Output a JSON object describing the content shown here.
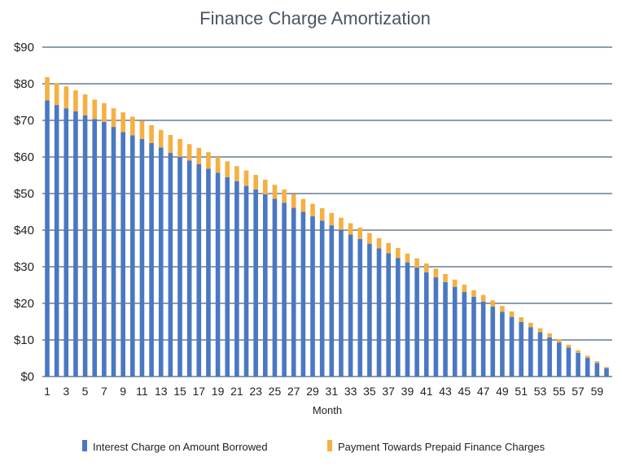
{
  "chart_data": {
    "type": "bar",
    "stacked": true,
    "title": "Finance Charge Amortization",
    "xlabel": "Month",
    "ylabel": "",
    "ylim": [
      0,
      90
    ],
    "y_ticks": [
      0,
      10,
      20,
      30,
      40,
      50,
      60,
      70,
      80,
      90
    ],
    "y_tick_labels": [
      "$0",
      "$10",
      "$20",
      "$30",
      "$40",
      "$50",
      "$60",
      "$70",
      "$80",
      "$90"
    ],
    "x_tick_labels": [
      "1",
      "3",
      "5",
      "7",
      "9",
      "11",
      "13",
      "15",
      "17",
      "19",
      "21",
      "23",
      "25",
      "27",
      "29",
      "31",
      "33",
      "35",
      "37",
      "39",
      "41",
      "43",
      "45",
      "47",
      "49",
      "51",
      "53",
      "55",
      "57",
      "59"
    ],
    "categories": [
      1,
      2,
      3,
      4,
      5,
      6,
      7,
      8,
      9,
      10,
      11,
      12,
      13,
      14,
      15,
      16,
      17,
      18,
      19,
      20,
      21,
      22,
      23,
      24,
      25,
      26,
      27,
      28,
      29,
      30,
      31,
      32,
      33,
      34,
      35,
      36,
      37,
      38,
      39,
      40,
      41,
      42,
      43,
      44,
      45,
      46,
      47,
      48,
      49,
      50,
      51,
      52,
      53,
      54,
      55,
      56,
      57,
      58,
      59,
      60
    ],
    "grid": true,
    "legend_position": "bottom",
    "series": [
      {
        "name": "Interest Charge on Amount Borrowed",
        "color": "#4a78c2",
        "values": [
          75.5,
          74.2,
          73.3,
          72.5,
          71.4,
          70.4,
          69.6,
          68.2,
          66.8,
          65.9,
          64.9,
          63.8,
          62.6,
          61.1,
          60.0,
          59.0,
          58.0,
          56.8,
          55.7,
          54.5,
          53.4,
          52.1,
          51.1,
          49.8,
          48.6,
          47.5,
          46.1,
          45.0,
          43.8,
          42.6,
          41.3,
          40.1,
          38.8,
          37.6,
          36.3,
          35.0,
          33.7,
          32.4,
          31.2,
          29.8,
          28.5,
          27.1,
          25.8,
          24.5,
          23.1,
          21.8,
          20.5,
          19.1,
          17.7,
          16.3,
          14.9,
          13.5,
          12.1,
          10.7,
          9.3,
          7.9,
          6.5,
          5.1,
          3.7,
          2.3
        ]
      },
      {
        "name": "Payment Towards Prepaid Finance Charges",
        "color": "#f5b041",
        "values": [
          6.3,
          6.0,
          6.0,
          5.7,
          5.7,
          5.3,
          5.1,
          5.1,
          5.4,
          5.1,
          4.9,
          4.9,
          4.8,
          4.9,
          4.9,
          4.5,
          4.5,
          4.5,
          4.3,
          4.3,
          4.1,
          4.2,
          4.0,
          4.0,
          3.8,
          3.6,
          3.7,
          3.5,
          3.4,
          3.4,
          3.4,
          3.3,
          3.1,
          3.1,
          2.9,
          2.8,
          2.8,
          2.7,
          2.4,
          2.5,
          2.4,
          2.4,
          2.2,
          2.0,
          2.0,
          1.8,
          1.8,
          1.7,
          1.6,
          1.5,
          1.3,
          1.2,
          1.1,
          1.1,
          0.9,
          0.8,
          0.7,
          0.6,
          0.5,
          0.3
        ]
      }
    ]
  }
}
